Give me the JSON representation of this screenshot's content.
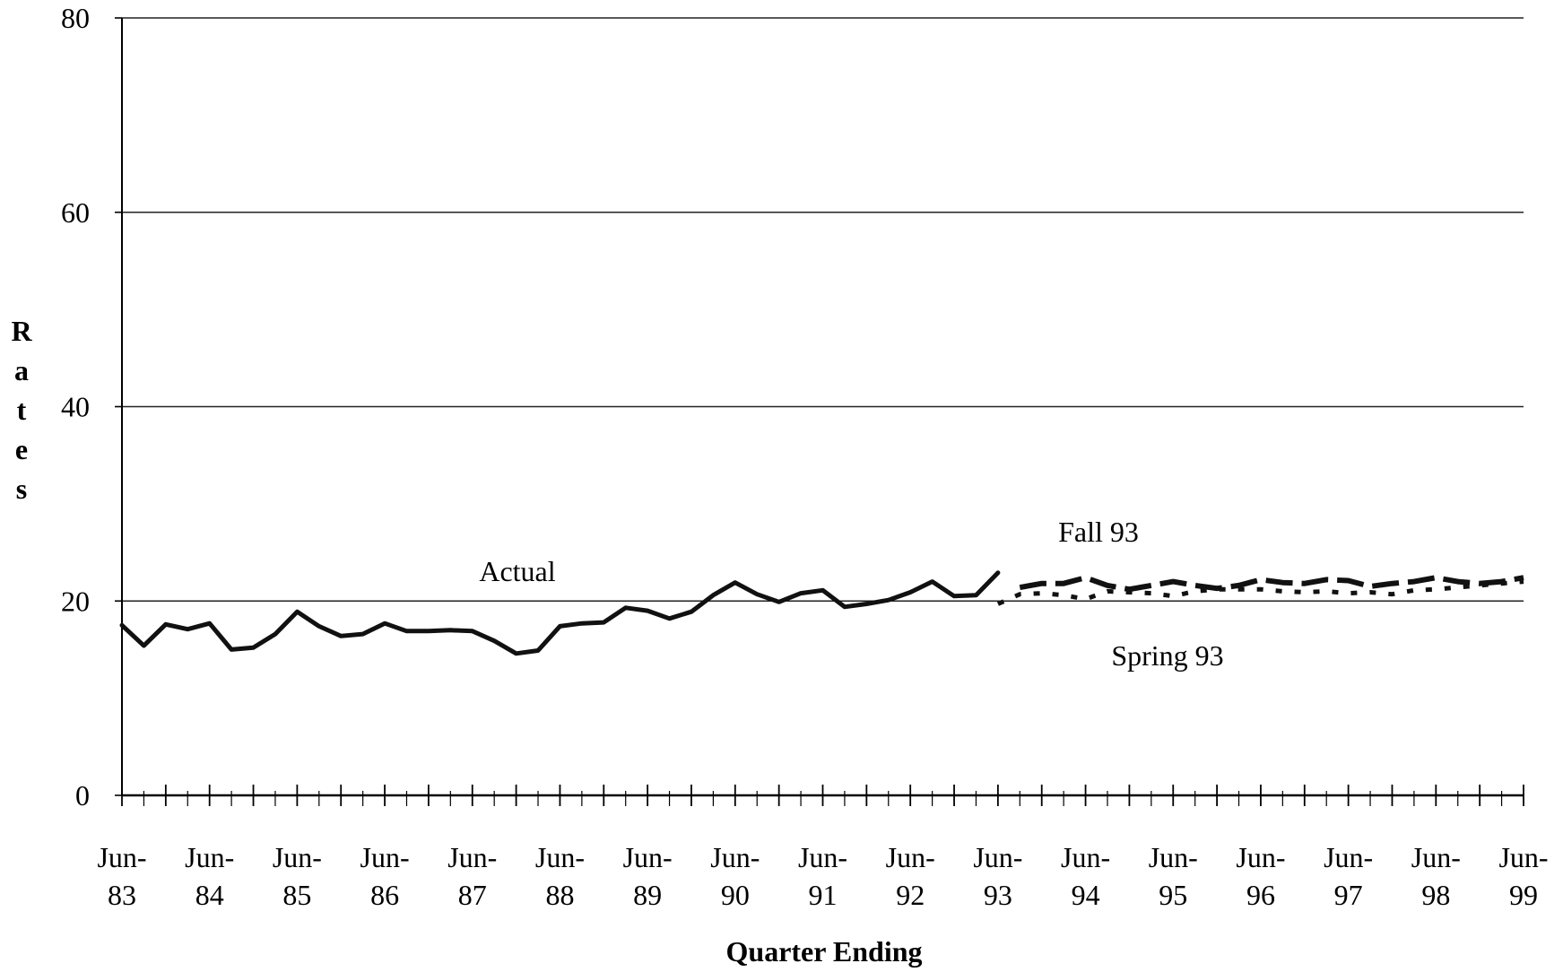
{
  "chart_data": {
    "type": "line",
    "title": "",
    "xlabel": "Quarter Ending",
    "ylabel": "Rates",
    "ylim": [
      0,
      80
    ],
    "yticks": [
      0,
      20,
      40,
      60,
      80
    ],
    "grid": "horizontal",
    "x_tick_labels": [
      {
        "q": 0,
        "line1": "Jun-",
        "line2": "83"
      },
      {
        "q": 4,
        "line1": "Jun-",
        "line2": "84"
      },
      {
        "q": 8,
        "line1": "Jun-",
        "line2": "85"
      },
      {
        "q": 12,
        "line1": "Jun-",
        "line2": "86"
      },
      {
        "q": 16,
        "line1": "Jun-",
        "line2": "87"
      },
      {
        "q": 20,
        "line1": "Jun-",
        "line2": "88"
      },
      {
        "q": 24,
        "line1": "Jun-",
        "line2": "89"
      },
      {
        "q": 28,
        "line1": "Jun-",
        "line2": "90"
      },
      {
        "q": 32,
        "line1": "Jun-",
        "line2": "91"
      },
      {
        "q": 36,
        "line1": "Jun-",
        "line2": "92"
      },
      {
        "q": 40,
        "line1": "Jun-",
        "line2": "93"
      },
      {
        "q": 44,
        "line1": "Jun-",
        "line2": "94"
      },
      {
        "q": 48,
        "line1": "Jun-",
        "line2": "95"
      },
      {
        "q": 52,
        "line1": "Jun-",
        "line2": "96"
      },
      {
        "q": 56,
        "line1": "Jun-",
        "line2": "97"
      },
      {
        "q": 60,
        "line1": "Jun-",
        "line2": "98"
      },
      {
        "q": 64,
        "line1": "Jun-",
        "line2": "99"
      }
    ],
    "series": [
      {
        "name": "Actual",
        "style": "solid",
        "x": [
          0,
          1,
          2,
          3,
          4,
          5,
          6,
          7,
          8,
          9,
          10,
          11,
          12,
          13,
          14,
          15,
          16,
          17,
          18,
          19,
          20,
          21,
          22,
          23,
          24,
          25,
          26,
          27,
          28,
          29,
          30,
          31,
          32,
          33,
          34,
          35,
          36,
          37,
          38,
          39,
          40
        ],
        "values": [
          17.5,
          15.4,
          17.6,
          17.1,
          17.7,
          15.0,
          15.2,
          16.6,
          18.9,
          17.4,
          16.4,
          16.6,
          17.7,
          16.9,
          16.9,
          17.0,
          16.9,
          15.9,
          14.6,
          14.9,
          17.4,
          17.7,
          17.8,
          19.3,
          19.0,
          18.2,
          18.9,
          20.6,
          21.9,
          20.7,
          19.9,
          20.8,
          21.1,
          19.4,
          19.7,
          20.1,
          20.9,
          22.0,
          20.5,
          20.6,
          22.9
        ]
      },
      {
        "name": "Fall 93",
        "style": "dashed",
        "x": [
          41,
          42,
          43,
          44,
          45,
          46,
          47,
          48,
          49,
          50,
          51,
          52,
          53,
          54,
          55,
          56,
          57,
          58,
          59,
          60,
          61,
          62,
          63,
          64
        ],
        "values": [
          21.4,
          21.8,
          21.8,
          22.4,
          21.6,
          21.2,
          21.6,
          22.0,
          21.6,
          21.3,
          21.6,
          22.2,
          21.9,
          21.8,
          22.2,
          22.1,
          21.5,
          21.8,
          22.0,
          22.4,
          22.0,
          21.8,
          22.0,
          22.4
        ]
      },
      {
        "name": "Spring 93",
        "style": "dotted",
        "x": [
          40,
          41,
          42,
          43,
          44,
          45,
          46,
          47,
          48,
          49,
          50,
          51,
          52,
          53,
          54,
          55,
          56,
          57,
          58,
          59,
          60,
          61,
          62,
          63,
          64
        ],
        "values": [
          19.7,
          20.7,
          20.8,
          20.6,
          20.2,
          21.0,
          20.9,
          20.8,
          20.5,
          21.0,
          21.2,
          21.2,
          21.2,
          21.0,
          20.9,
          21.0,
          20.8,
          20.9,
          20.7,
          21.1,
          21.2,
          21.4,
          21.6,
          21.8,
          22.0
        ]
      }
    ],
    "annotations": [
      "Actual",
      "Fall 93",
      "Spring 93"
    ],
    "colors": {
      "line": "#111111",
      "grid": "#222222",
      "background": "#ffffff"
    }
  }
}
